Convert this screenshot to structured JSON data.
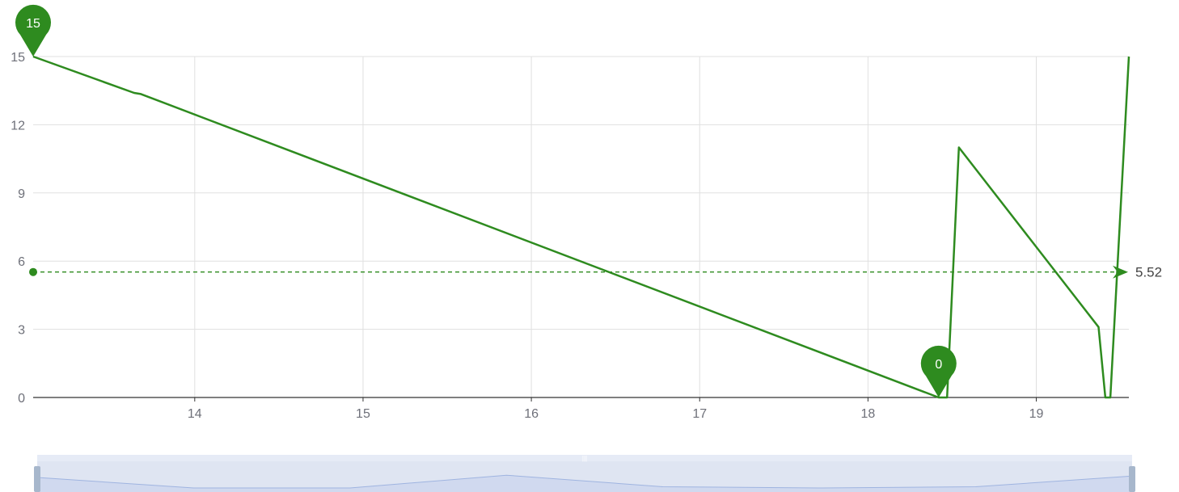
{
  "colors": {
    "series": "#2e8b1f",
    "grid": "#e0e0e0",
    "axis": "#333333",
    "tick_text": "#6e7079",
    "slider_bg": "#dfe5f2",
    "slider_fill": "#d0d9ef",
    "slider_line": "#9fb4e0",
    "slider_handle": "#a7b7cc"
  },
  "chart_data": {
    "type": "line",
    "title": "",
    "xlabel": "",
    "ylabel": "",
    "xlim": [
      13.04,
      19.55
    ],
    "ylim": [
      0,
      15
    ],
    "x_ticks": [
      14,
      15,
      16,
      17,
      18,
      19
    ],
    "y_ticks": [
      0,
      3,
      6,
      9,
      12,
      15
    ],
    "grid": true,
    "legend": "none",
    "series": [
      {
        "points": [
          [
            13.04,
            15
          ],
          [
            13.64,
            13.4
          ],
          [
            13.68,
            13.35
          ],
          [
            18.42,
            0
          ],
          [
            18.47,
            0
          ],
          [
            18.54,
            11
          ],
          [
            19.37,
            3.1
          ],
          [
            19.41,
            0
          ],
          [
            19.44,
            0
          ],
          [
            19.55,
            15
          ]
        ]
      }
    ],
    "mark_points": [
      {
        "label": "15",
        "x": 13.04,
        "y": 15
      },
      {
        "label": "0",
        "x": 18.42,
        "y": 0
      }
    ],
    "mark_line": {
      "label": "5.52",
      "y": 5.52
    },
    "data_zoom": {
      "preview": [
        0.86,
        0.2,
        0.2,
        1.0,
        0.28,
        0.2,
        0.28,
        0.95
      ]
    }
  }
}
